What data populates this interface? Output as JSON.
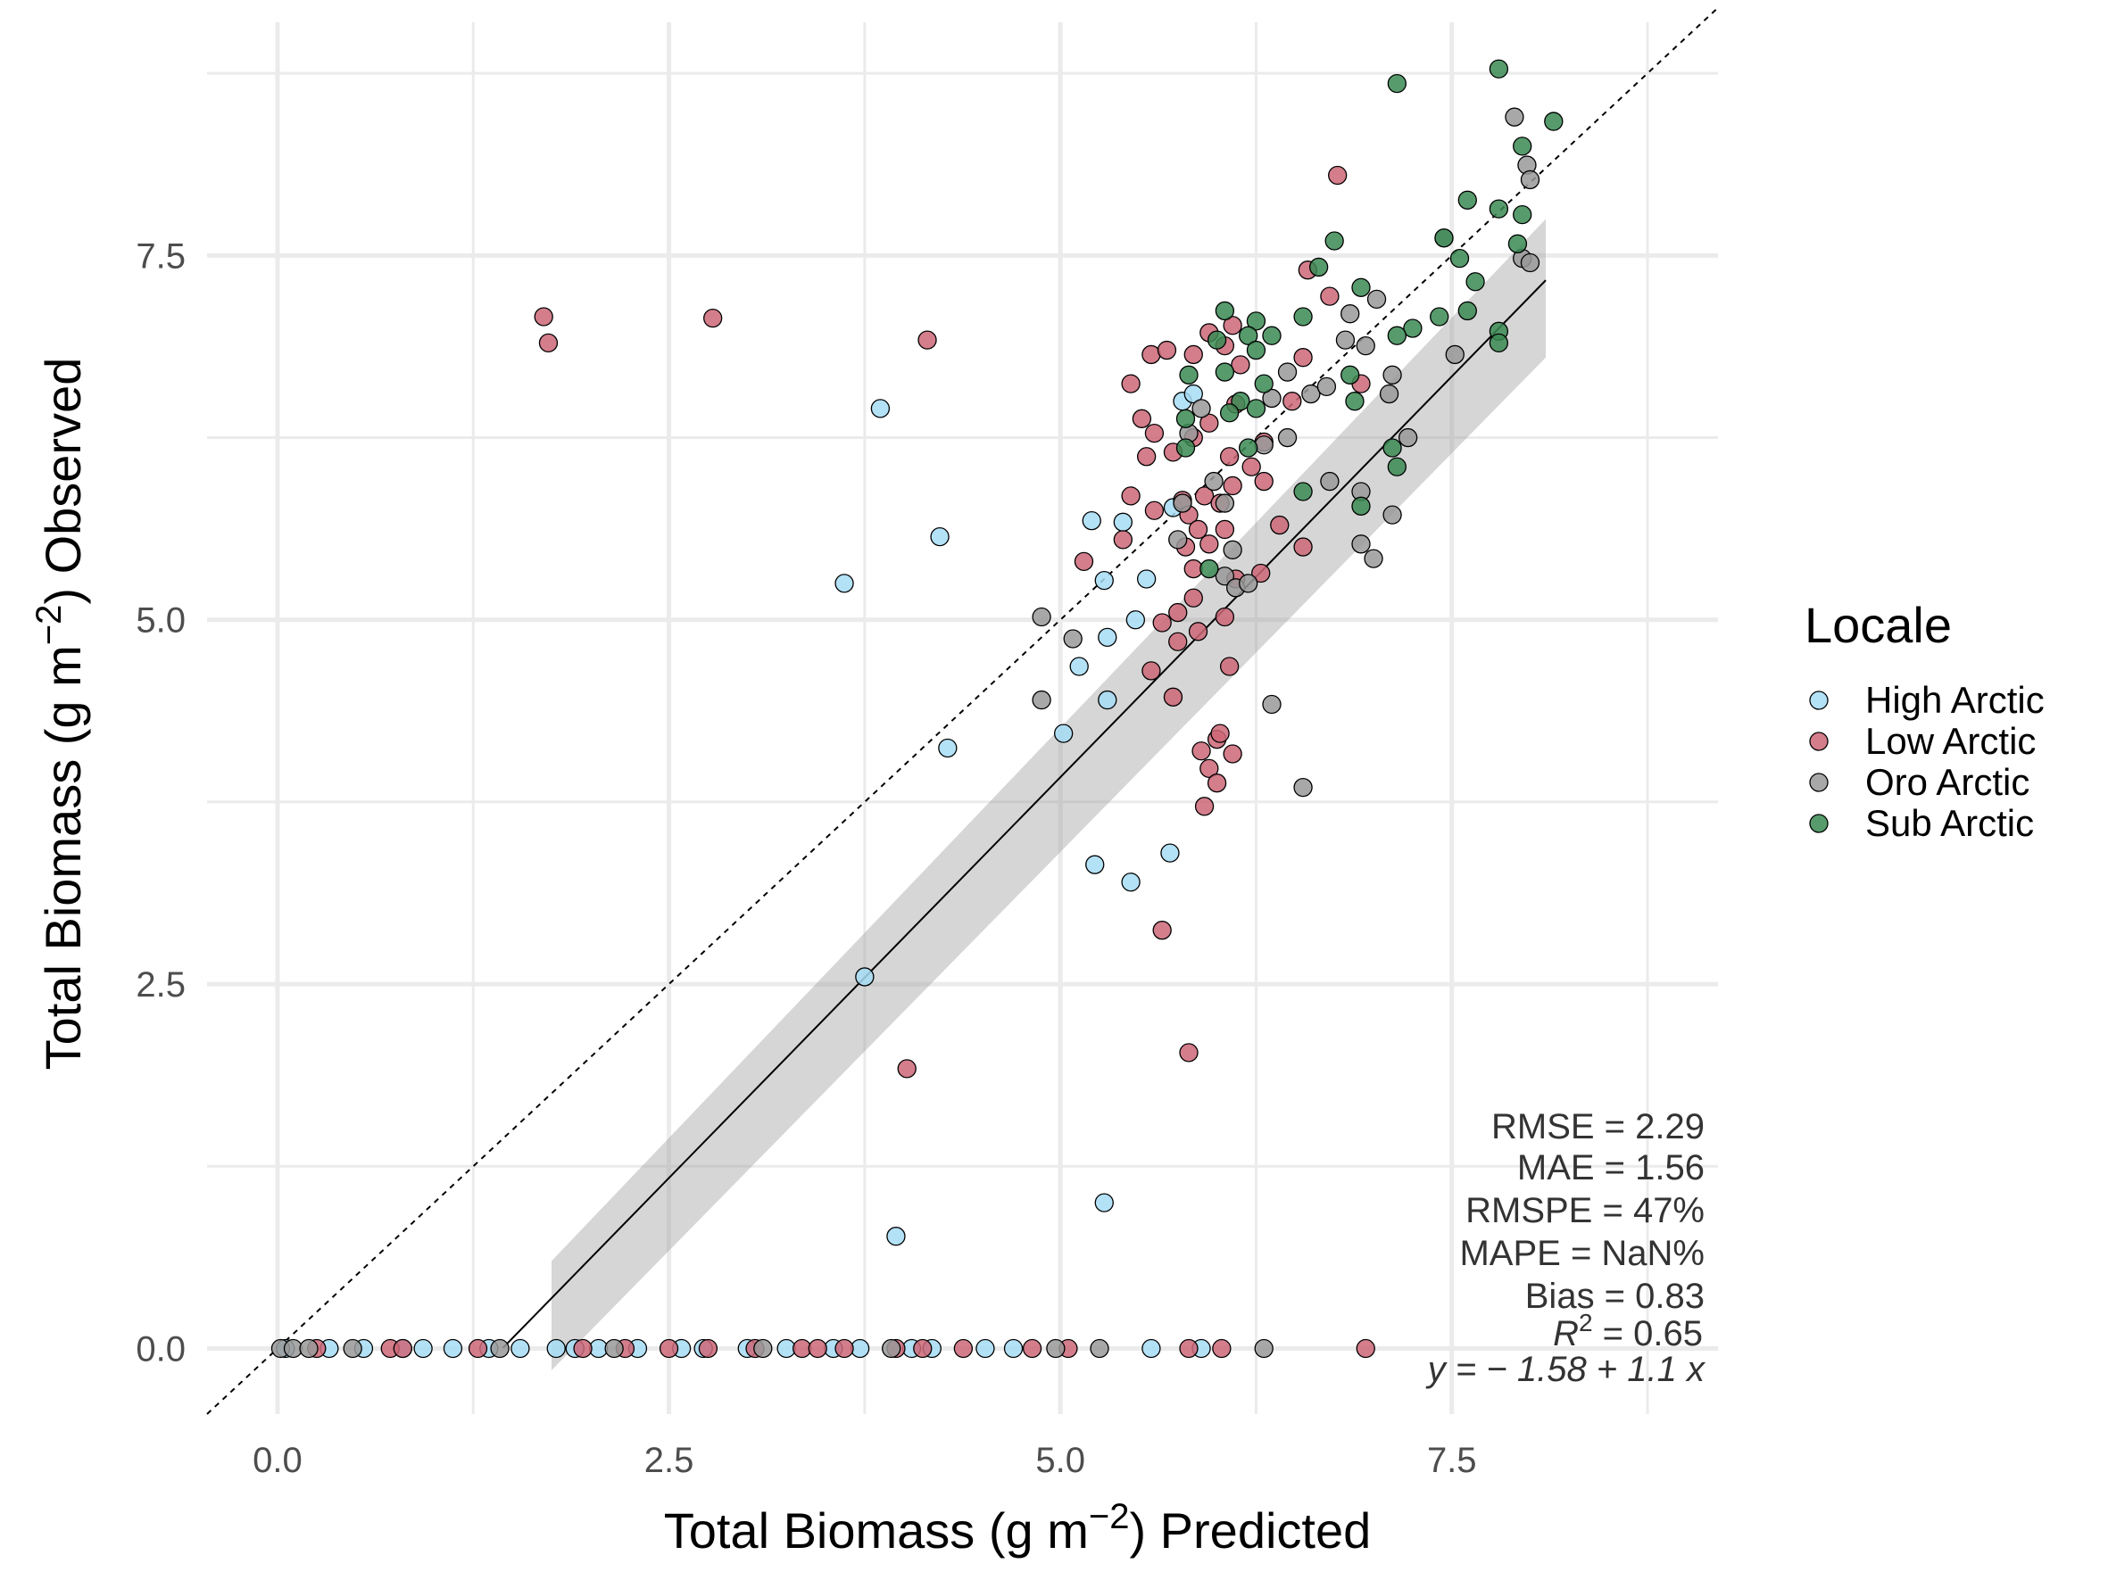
{
  "chart_data": {
    "type": "scatter",
    "title": "",
    "xlabel": "Total Biomass (g  m",
    "xlabel_sup": "−2",
    "xlabel_tail": ") Predicted",
    "ylabel": "Total Biomass (g  m",
    "ylabel_sup": "−2",
    "ylabel_tail": ") Observed",
    "xlim": [
      -0.45,
      9.2
    ],
    "ylim": [
      -0.45,
      9.1
    ],
    "xticks": [
      0.0,
      2.5,
      5.0,
      7.5
    ],
    "xtick_labels": [
      "0.0",
      "2.5",
      "5.0",
      "7.5"
    ],
    "yticks": [
      0.0,
      2.5,
      5.0,
      7.5
    ],
    "ytick_labels": [
      "0.0",
      "2.5",
      "5.0",
      "7.5"
    ],
    "grid": true,
    "legend": {
      "title": "Locale",
      "placement": "right",
      "entries": [
        {
          "name": "High Arctic",
          "color": "#a6dcf5"
        },
        {
          "name": "Low Arctic",
          "color": "#cc6677"
        },
        {
          "name": "Oro Arctic",
          "color": "#999999"
        },
        {
          "name": "Sub Arctic",
          "color": "#3a8a52"
        }
      ]
    },
    "one_to_one_line": {
      "intercept": 0,
      "slope": 1,
      "style": "dashed"
    },
    "fit_line": {
      "intercept": -1.58,
      "slope": 1.1,
      "x_range": [
        1.44,
        8.1
      ],
      "se_band": {
        "x_start": 1.75,
        "x_end": 8.1,
        "lower_start": -0.15,
        "upper_start": 0.6,
        "lower_end": 6.8,
        "upper_end": 7.75
      }
    },
    "stats": {
      "rmse": "RMSE = 2.29",
      "mae": "MAE = 1.56",
      "rmspe": "RMSPE = 47%",
      "mape": "MAPE = NaN%",
      "bias": "Bias = 0.83",
      "r2_prefix": "R",
      "r2_sup": "2",
      "r2_value": " = 0.65",
      "equation": "y = − 1.58 + 1.1 x"
    },
    "series": [
      {
        "name": "High Arctic",
        "color": "#a6dcf5",
        "points": [
          [
            3.85,
            6.45
          ],
          [
            4.23,
            5.57
          ],
          [
            3.62,
            5.25
          ],
          [
            5.2,
            5.68
          ],
          [
            5.4,
            5.67
          ],
          [
            5.78,
            6.5
          ],
          [
            5.85,
            6.55
          ],
          [
            5.28,
            5.27
          ],
          [
            5.55,
            5.28
          ],
          [
            5.48,
            5.0
          ],
          [
            5.3,
            4.88
          ],
          [
            5.3,
            4.45
          ],
          [
            5.12,
            4.68
          ],
          [
            5.02,
            4.22
          ],
          [
            4.28,
            4.12
          ],
          [
            5.72,
            5.77
          ],
          [
            5.22,
            3.32
          ],
          [
            5.45,
            3.2
          ],
          [
            5.7,
            3.4
          ],
          [
            3.75,
            2.55
          ],
          [
            5.28,
            1.0
          ],
          [
            3.95,
            0.77
          ],
          [
            0.05,
            0
          ],
          [
            0.33,
            0
          ],
          [
            0.55,
            0
          ],
          [
            0.8,
            0
          ],
          [
            0.93,
            0
          ],
          [
            1.12,
            0
          ],
          [
            1.35,
            0
          ],
          [
            1.55,
            0
          ],
          [
            1.78,
            0
          ],
          [
            1.9,
            0
          ],
          [
            2.05,
            0
          ],
          [
            2.3,
            0
          ],
          [
            2.58,
            0
          ],
          [
            2.72,
            0
          ],
          [
            3.0,
            0
          ],
          [
            3.25,
            0
          ],
          [
            3.55,
            0
          ],
          [
            3.72,
            0
          ],
          [
            4.05,
            0
          ],
          [
            4.18,
            0
          ],
          [
            4.52,
            0
          ],
          [
            4.7,
            0
          ],
          [
            5.58,
            0
          ],
          [
            5.9,
            0
          ]
        ]
      },
      {
        "name": "Low Arctic",
        "color": "#cc6677",
        "points": [
          [
            1.7,
            7.08
          ],
          [
            1.73,
            6.9
          ],
          [
            2.78,
            7.07
          ],
          [
            4.15,
            6.92
          ],
          [
            6.77,
            8.05
          ],
          [
            6.58,
            7.4
          ],
          [
            6.72,
            7.22
          ],
          [
            6.1,
            7.02
          ],
          [
            5.95,
            6.97
          ],
          [
            5.58,
            6.82
          ],
          [
            5.68,
            6.85
          ],
          [
            5.85,
            6.82
          ],
          [
            6.05,
            6.88
          ],
          [
            6.15,
            6.75
          ],
          [
            5.45,
            6.62
          ],
          [
            5.52,
            6.38
          ],
          [
            5.6,
            6.28
          ],
          [
            5.72,
            6.15
          ],
          [
            5.85,
            6.25
          ],
          [
            5.95,
            6.35
          ],
          [
            6.08,
            6.12
          ],
          [
            6.22,
            6.05
          ],
          [
            6.3,
            5.95
          ],
          [
            6.1,
            5.92
          ],
          [
            5.92,
            5.85
          ],
          [
            5.78,
            5.82
          ],
          [
            5.6,
            5.75
          ],
          [
            5.82,
            5.72
          ],
          [
            5.88,
            5.62
          ],
          [
            5.95,
            5.52
          ],
          [
            6.05,
            5.62
          ],
          [
            5.8,
            5.5
          ],
          [
            5.85,
            5.35
          ],
          [
            5.85,
            5.15
          ],
          [
            5.75,
            5.05
          ],
          [
            5.65,
            4.98
          ],
          [
            5.58,
            4.65
          ],
          [
            5.75,
            4.85
          ],
          [
            5.88,
            4.92
          ],
          [
            6.05,
            5.02
          ],
          [
            6.12,
            5.28
          ],
          [
            6.28,
            5.32
          ],
          [
            6.08,
            4.68
          ],
          [
            5.72,
            4.47
          ],
          [
            5.15,
            5.4
          ],
          [
            5.45,
            5.85
          ],
          [
            5.4,
            5.55
          ],
          [
            5.9,
            4.1
          ],
          [
            5.95,
            3.98
          ],
          [
            6.0,
            4.18
          ],
          [
            6.02,
            4.22
          ],
          [
            6.1,
            4.08
          ],
          [
            6.0,
            3.88
          ],
          [
            5.92,
            3.72
          ],
          [
            5.65,
            2.87
          ],
          [
            5.82,
            2.03
          ],
          [
            4.02,
            1.92
          ],
          [
            6.55,
            6.8
          ],
          [
            6.48,
            6.5
          ],
          [
            6.92,
            6.62
          ],
          [
            5.55,
            6.12
          ],
          [
            6.3,
            6.22
          ],
          [
            6.12,
            6.48
          ],
          [
            6.4,
            5.65
          ],
          [
            6.55,
            5.5
          ],
          [
            6.02,
            5.8
          ],
          [
            0.25,
            0
          ],
          [
            0.72,
            0
          ],
          [
            0.8,
            0
          ],
          [
            1.28,
            0
          ],
          [
            1.95,
            0
          ],
          [
            2.22,
            0
          ],
          [
            2.5,
            0
          ],
          [
            2.75,
            0
          ],
          [
            3.05,
            0
          ],
          [
            3.35,
            0
          ],
          [
            3.45,
            0
          ],
          [
            3.62,
            0
          ],
          [
            3.95,
            0
          ],
          [
            4.12,
            0
          ],
          [
            4.38,
            0
          ],
          [
            4.82,
            0
          ],
          [
            5.05,
            0
          ],
          [
            5.82,
            0
          ],
          [
            6.03,
            0
          ],
          [
            6.95,
            0
          ]
        ]
      },
      {
        "name": "Oro Arctic",
        "color": "#999999",
        "points": [
          [
            7.9,
            8.45
          ],
          [
            7.98,
            8.12
          ],
          [
            8.0,
            8.02
          ],
          [
            7.95,
            7.48
          ],
          [
            8.0,
            7.45
          ],
          [
            7.45,
            7.62
          ],
          [
            6.85,
            7.1
          ],
          [
            7.02,
            7.2
          ],
          [
            6.82,
            6.92
          ],
          [
            6.95,
            6.88
          ],
          [
            6.6,
            6.55
          ],
          [
            6.45,
            6.7
          ],
          [
            6.7,
            6.6
          ],
          [
            7.1,
            6.55
          ],
          [
            7.12,
            6.68
          ],
          [
            7.52,
            6.82
          ],
          [
            6.35,
            6.52
          ],
          [
            5.9,
            6.45
          ],
          [
            5.82,
            6.28
          ],
          [
            5.98,
            5.95
          ],
          [
            6.05,
            5.8
          ],
          [
            6.3,
            6.2
          ],
          [
            5.78,
            5.8
          ],
          [
            5.75,
            5.55
          ],
          [
            6.05,
            5.3
          ],
          [
            6.12,
            5.22
          ],
          [
            6.2,
            5.25
          ],
          [
            6.1,
            5.48
          ],
          [
            4.88,
            5.02
          ],
          [
            5.08,
            4.87
          ],
          [
            4.88,
            4.45
          ],
          [
            6.72,
            5.95
          ],
          [
            6.92,
            5.88
          ],
          [
            7.12,
            5.72
          ],
          [
            6.92,
            5.52
          ],
          [
            7.0,
            5.42
          ],
          [
            7.22,
            6.25
          ],
          [
            6.35,
            4.42
          ],
          [
            6.55,
            3.85
          ],
          [
            6.45,
            6.25
          ],
          [
            0.02,
            0
          ],
          [
            0.1,
            0
          ],
          [
            0.2,
            0
          ],
          [
            0.48,
            0
          ],
          [
            1.42,
            0
          ],
          [
            2.15,
            0
          ],
          [
            3.1,
            0
          ],
          [
            3.92,
            0
          ],
          [
            4.97,
            0
          ],
          [
            5.25,
            0
          ],
          [
            6.3,
            0
          ]
        ]
      },
      {
        "name": "Sub Arctic",
        "color": "#3a8a52",
        "points": [
          [
            7.15,
            8.68
          ],
          [
            7.8,
            8.78
          ],
          [
            8.15,
            8.42
          ],
          [
            7.95,
            8.25
          ],
          [
            7.6,
            7.88
          ],
          [
            7.8,
            7.82
          ],
          [
            7.95,
            7.78
          ],
          [
            7.45,
            7.62
          ],
          [
            7.92,
            7.58
          ],
          [
            7.55,
            7.48
          ],
          [
            7.65,
            7.32
          ],
          [
            7.6,
            7.12
          ],
          [
            7.42,
            7.08
          ],
          [
            7.25,
            7.0
          ],
          [
            7.15,
            6.95
          ],
          [
            7.8,
            6.98
          ],
          [
            7.8,
            6.9
          ],
          [
            6.92,
            7.28
          ],
          [
            6.75,
            7.6
          ],
          [
            6.65,
            7.42
          ],
          [
            6.55,
            7.08
          ],
          [
            6.25,
            7.05
          ],
          [
            6.05,
            7.12
          ],
          [
            6.2,
            6.95
          ],
          [
            6.25,
            6.85
          ],
          [
            6.35,
            6.95
          ],
          [
            6.0,
            6.92
          ],
          [
            6.05,
            6.7
          ],
          [
            6.15,
            6.5
          ],
          [
            6.25,
            6.45
          ],
          [
            6.3,
            6.62
          ],
          [
            6.08,
            6.42
          ],
          [
            5.82,
            6.68
          ],
          [
            5.8,
            6.38
          ],
          [
            5.8,
            6.18
          ],
          [
            6.2,
            6.18
          ],
          [
            6.85,
            6.68
          ],
          [
            6.88,
            6.5
          ],
          [
            6.92,
            5.78
          ],
          [
            7.12,
            6.18
          ],
          [
            7.15,
            6.05
          ],
          [
            6.55,
            5.88
          ],
          [
            5.95,
            5.35
          ]
        ]
      }
    ]
  }
}
